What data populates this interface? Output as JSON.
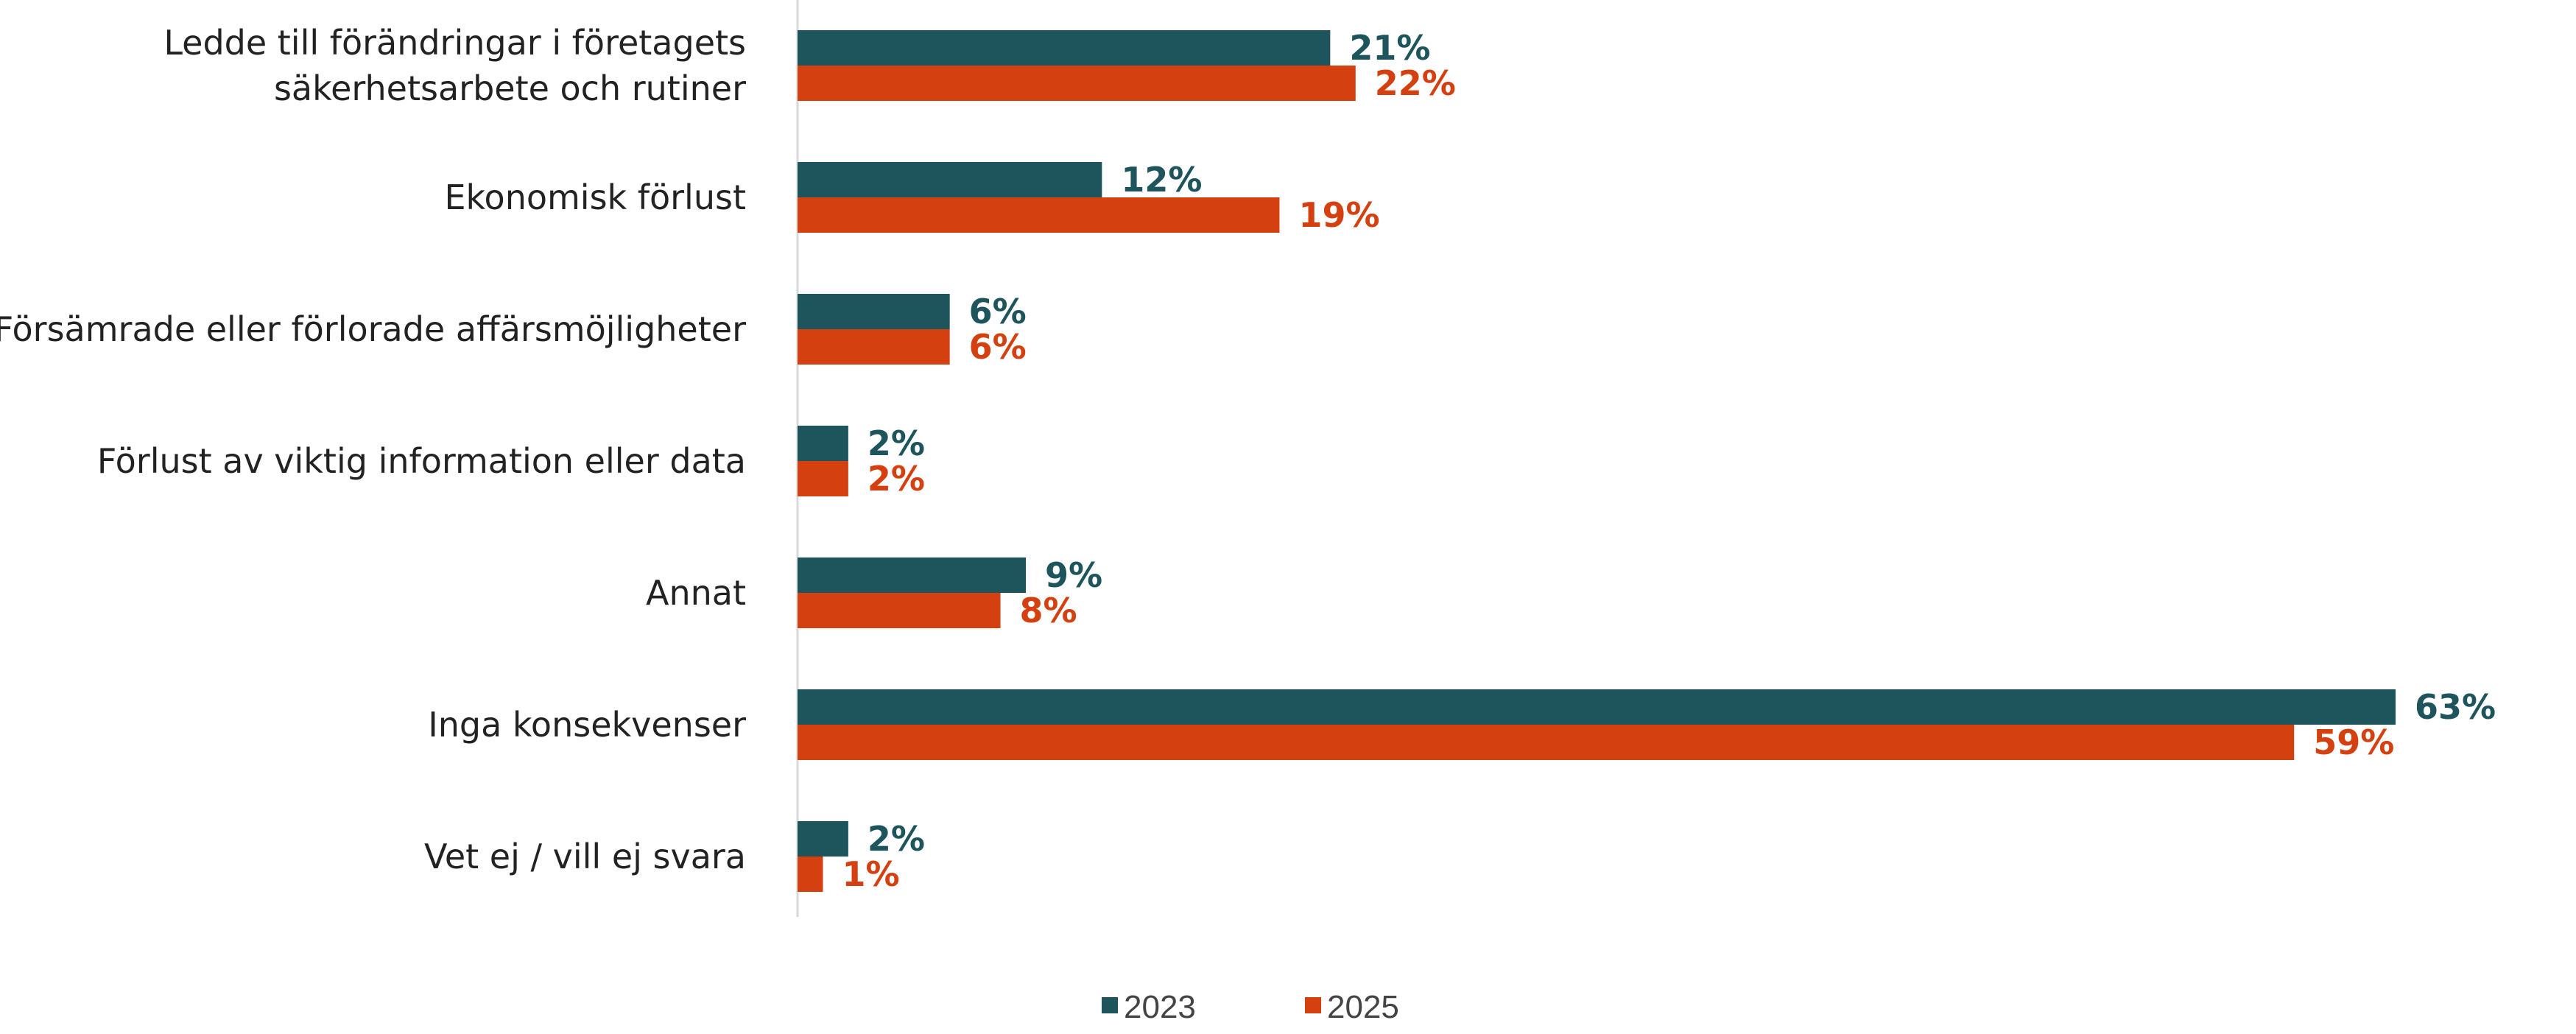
{
  "chart_data": {
    "type": "bar",
    "orientation": "horizontal",
    "title": "",
    "xlabel": "",
    "ylabel": "",
    "xlim": [
      0,
      65
    ],
    "grid": false,
    "legend_position": "bottom",
    "categories": [
      [
        "Ledde till förändringar i företagets",
        "säkerhetsarbete och rutiner"
      ],
      [
        "Ekonomisk förlust"
      ],
      [
        "Försämrade eller förlorade affärsmöjligheter"
      ],
      [
        "Förlust av viktig information eller data"
      ],
      [
        "Annat"
      ],
      [
        "Inga konsekvenser"
      ],
      [
        "Vet ej / vill ej svara"
      ]
    ],
    "series": [
      {
        "name": "2023",
        "color": "#1e555c",
        "values": [
          21,
          12,
          6,
          2,
          9,
          63,
          2
        ],
        "labels": [
          "21%",
          "12%",
          "6%",
          "2%",
          "9%",
          "63%",
          "2%"
        ]
      },
      {
        "name": "2025",
        "color": "#d4400f",
        "values": [
          22,
          19,
          6,
          2,
          8,
          59,
          1
        ],
        "labels": [
          "22%",
          "19%",
          "6%",
          "2%",
          "8%",
          "59%",
          "1%"
        ]
      }
    ]
  }
}
